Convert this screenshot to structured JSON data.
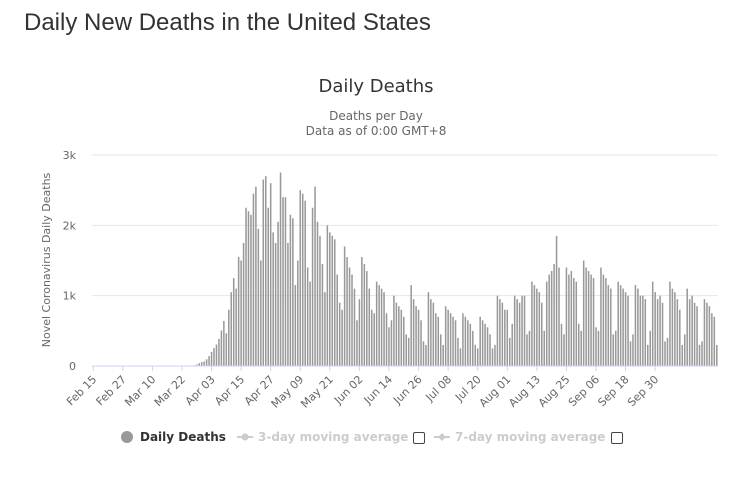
{
  "page": {
    "heading": "Daily New Deaths in the United States"
  },
  "chart_data": {
    "type": "bar",
    "title": "Daily Deaths",
    "subtitle_lines": [
      "Deaths per Day",
      "Data as of 0:00 GMT+8"
    ],
    "ylabel": "Novel Coronavirus Daily Deaths",
    "ylim": [
      0,
      3000
    ],
    "yticks": [
      0,
      1000,
      2000,
      3000
    ],
    "ytick_labels": [
      "0",
      "1k",
      "2k",
      "3k"
    ],
    "x_start": "Feb 15",
    "tick_labels": [
      "Feb 15",
      "Feb 27",
      "Mar 10",
      "Mar 22",
      "Apr 03",
      "Apr 15",
      "Apr 27",
      "May 09",
      "May 21",
      "Jun 02",
      "Jun 14",
      "Jun 26",
      "Jul 08",
      "Jul 20",
      "Aug 01",
      "Aug 13",
      "Aug 25",
      "Sep 06",
      "Sep 18",
      "Sep 30"
    ],
    "tick_interval_days": 12,
    "grid": true,
    "bar_color": "#999999",
    "series": [
      {
        "name": "Daily Deaths",
        "values": [
          0,
          0,
          0,
          0,
          0,
          0,
          0,
          0,
          0,
          0,
          0,
          0,
          0,
          0,
          0,
          0,
          0,
          0,
          0,
          0,
          0,
          0,
          0,
          0,
          0,
          0,
          0,
          0,
          0,
          0,
          0,
          0,
          0,
          0,
          0,
          0,
          0,
          0,
          0,
          0,
          5,
          10,
          20,
          40,
          55,
          65,
          95,
          140,
          200,
          255,
          305,
          385,
          505,
          640,
          465,
          800,
          1050,
          1250,
          1100,
          1550,
          1500,
          1750,
          2250,
          2200,
          2150,
          2450,
          2550,
          1950,
          1500,
          2650,
          2700,
          2250,
          2600,
          1900,
          1750,
          2050,
          2750,
          2400,
          2400,
          1750,
          2150,
          2100,
          1150,
          1500,
          2500,
          2450,
          2350,
          1400,
          1200,
          2250,
          2550,
          2050,
          1850,
          1450,
          1050,
          2000,
          1900,
          1850,
          1800,
          1300,
          900,
          800,
          1700,
          1550,
          1400,
          1300,
          1100,
          650,
          950,
          1550,
          1450,
          1350,
          1100,
          800,
          750,
          1200,
          1150,
          1100,
          1050,
          750,
          550,
          650,
          1000,
          900,
          850,
          800,
          700,
          450,
          400,
          1150,
          950,
          850,
          800,
          650,
          350,
          300,
          1050,
          950,
          900,
          750,
          700,
          450,
          300,
          850,
          800,
          750,
          700,
          650,
          400,
          250,
          750,
          700,
          650,
          600,
          500,
          300,
          250,
          700,
          650,
          600,
          550,
          450,
          250,
          300,
          1000,
          950,
          900,
          800,
          800,
          400,
          600,
          1000,
          950,
          900,
          1000,
          1000,
          450,
          500,
          1200,
          1150,
          1100,
          1050,
          900,
          500,
          1200,
          1300,
          1350,
          1450,
          1850,
          1400,
          600,
          450,
          1400,
          1300,
          1350,
          1250,
          1200,
          600,
          500,
          1500,
          1400,
          1350,
          1300,
          1250,
          550,
          500,
          1400,
          1300,
          1250,
          1150,
          1100,
          450,
          500,
          1200,
          1150,
          1100,
          1050,
          1000,
          350,
          450,
          1150,
          1100,
          1000,
          1000,
          950,
          300,
          500,
          1200,
          1050,
          950,
          1000,
          900,
          350,
          400,
          1200,
          1100,
          1050,
          950,
          800,
          300,
          450,
          1100,
          950,
          1000,
          900,
          850,
          300,
          350,
          950,
          900,
          850,
          750,
          700,
          300
        ]
      }
    ],
    "legend": [
      {
        "label": "Daily Deaths",
        "active": true
      },
      {
        "label": "3-day moving average",
        "active": false
      },
      {
        "label": "7-day moving average",
        "active": false
      }
    ]
  }
}
